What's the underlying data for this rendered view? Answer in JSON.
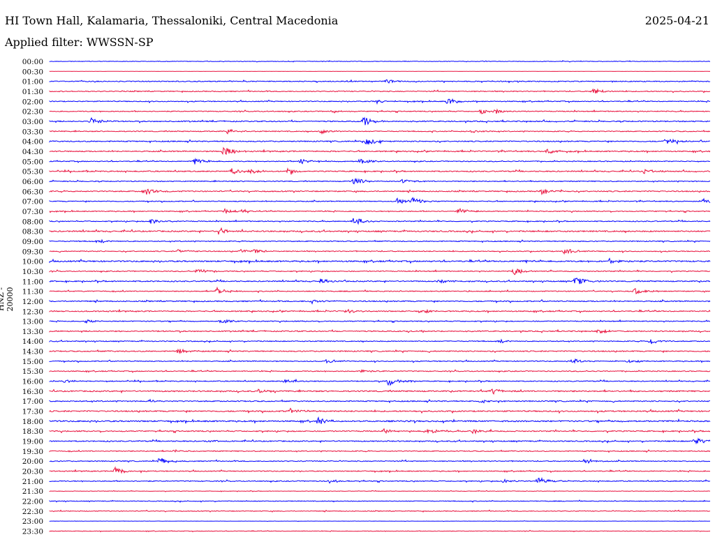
{
  "header": {
    "station": "HI Town Hall, Kalamaria, Thessaloniki, Central Macedonia",
    "date": "2025-04-21",
    "filter": "Applied filter: WWSSN-SP"
  },
  "chart_data": {
    "type": "line",
    "title": "HI Town Hall, Kalamaria, Thessaloniki, Central Macedonia",
    "ylabel": "HNZ - 20000",
    "row_minutes": 30,
    "colors": [
      "#0000ff",
      "#e8103c"
    ],
    "row_labels": [
      "00:00",
      "00:30",
      "01:00",
      "01:30",
      "02:00",
      "02:30",
      "03:00",
      "03:30",
      "04:00",
      "04:30",
      "05:00",
      "05:30",
      "06:00",
      "06:30",
      "07:00",
      "07:30",
      "08:00",
      "08:30",
      "09:00",
      "09:30",
      "10:00",
      "10:30",
      "11:00",
      "11:30",
      "12:00",
      "12:30",
      "13:00",
      "13:30",
      "14:00",
      "14:30",
      "15:00",
      "15:30",
      "16:00",
      "16:30",
      "17:00",
      "17:30",
      "18:00",
      "18:30",
      "19:00",
      "19:30",
      "20:00",
      "20:30",
      "21:00",
      "21:30",
      "22:00",
      "22:30",
      "23:00",
      "23:30"
    ],
    "noise": [
      0.6,
      0.1,
      1,
      1,
      1,
      1,
      1.2,
      1,
      1.2,
      1.2,
      1,
      1.2,
      1,
      1.2,
      1,
      1,
      1,
      1.4,
      1,
      1,
      1.5,
      1,
      1.2,
      1,
      1.2,
      1.2,
      1,
      1.2,
      1,
      1.2,
      1,
      1,
      1,
      1.4,
      1.2,
      1.4,
      1.5,
      1.2,
      1.2,
      1,
      1,
      1,
      1,
      0.5,
      0.8,
      0.8,
      0.3,
      0.6
    ],
    "events": [
      [],
      [],
      [
        [
          15.3,
          3
        ]
      ],
      [
        [
          24.7,
          5
        ]
      ],
      [
        [
          14.9,
          3
        ],
        [
          18.1,
          5
        ]
      ],
      [
        [
          12.8,
          2
        ],
        [
          19.6,
          4
        ],
        [
          20.2,
          4
        ]
      ],
      [
        [
          1.9,
          6
        ],
        [
          14.2,
          8
        ]
      ],
      [
        [
          8.1,
          4
        ],
        [
          12.3,
          4
        ],
        [
          19.2,
          2
        ]
      ],
      [
        [
          14.4,
          6
        ],
        [
          28,
          5
        ]
      ],
      [
        [
          7.9,
          8
        ],
        [
          22.6,
          4
        ]
      ],
      [
        [
          6.6,
          5
        ],
        [
          11.4,
          4
        ],
        [
          14.1,
          5
        ]
      ],
      [
        [
          8.3,
          5
        ],
        [
          9.1,
          4
        ],
        [
          10.8,
          4
        ],
        [
          27,
          3
        ]
      ],
      [
        [
          13.8,
          6
        ],
        [
          16,
          3
        ]
      ],
      [
        [
          4.3,
          7
        ],
        [
          22.3,
          5
        ]
      ],
      [
        [
          15.8,
          5
        ],
        [
          16.5,
          5
        ],
        [
          29.7,
          4
        ]
      ],
      [
        [
          8,
          5
        ],
        [
          8.7,
          3
        ],
        [
          18.6,
          4
        ]
      ],
      [
        [
          4.6,
          4
        ],
        [
          13.8,
          7
        ]
      ],
      [
        [
          7.7,
          5
        ]
      ],
      [
        [
          2.2,
          3
        ]
      ],
      [
        [
          5.8,
          3
        ],
        [
          8.7,
          3
        ],
        [
          9.2,
          4
        ],
        [
          23.4,
          5
        ]
      ],
      [
        [
          21.6,
          2
        ],
        [
          25.4,
          4
        ]
      ],
      [
        [
          6.7,
          4
        ],
        [
          21.1,
          5
        ]
      ],
      [
        [
          12.3,
          3
        ],
        [
          17.7,
          3
        ],
        [
          23.9,
          6
        ]
      ],
      [
        [
          7.6,
          6
        ],
        [
          26.6,
          5
        ]
      ],
      [
        [
          11.9,
          3
        ]
      ],
      [
        [
          13.4,
          3
        ],
        [
          16.9,
          3
        ]
      ],
      [
        [
          1.6,
          3
        ],
        [
          7.8,
          4
        ]
      ],
      [
        [
          24.9,
          3
        ]
      ],
      [
        [
          20.4,
          3
        ],
        [
          27.3,
          5
        ]
      ],
      [
        [
          5.8,
          4
        ]
      ],
      [
        [
          12.6,
          3
        ],
        [
          23.8,
          3
        ],
        [
          26.2,
          3
        ]
      ],
      [
        [
          14.2,
          2
        ]
      ],
      [
        [
          0.7,
          3
        ],
        [
          10.7,
          4
        ],
        [
          15.4,
          7
        ]
      ],
      [
        [
          9.5,
          3
        ],
        [
          20.1,
          4
        ]
      ],
      [
        [
          4.5,
          2
        ],
        [
          19.6,
          3
        ]
      ],
      [
        [
          10.9,
          4
        ]
      ],
      [
        [
          12.2,
          5
        ]
      ],
      [
        [
          15.2,
          3
        ],
        [
          17.1,
          5
        ],
        [
          19.2,
          4
        ]
      ],
      [
        [
          7.2,
          2
        ],
        [
          29.3,
          5
        ]
      ],
      [
        [
          5.7,
          2
        ]
      ],
      [
        [
          5,
          5
        ],
        [
          24.3,
          5
        ]
      ],
      [
        [
          3,
          6
        ]
      ],
      [
        [
          12.7,
          3
        ],
        [
          20.6,
          3
        ],
        [
          22.2,
          6
        ]
      ],
      [],
      [],
      [],
      [],
      []
    ]
  }
}
